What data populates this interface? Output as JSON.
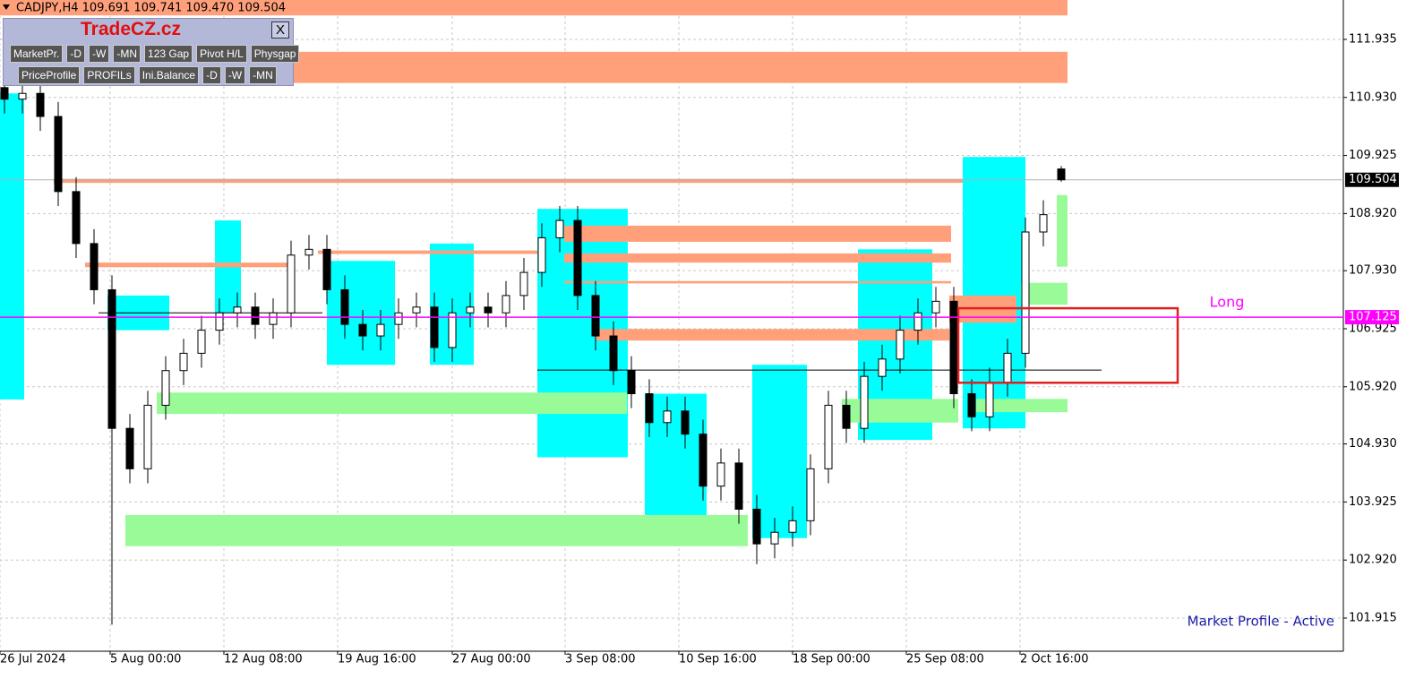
{
  "chart_data": {
    "type": "candlestick",
    "header": "CADJPY,H4  109.691 109.741 109.470 109.504",
    "x": [
      0,
      1,
      2,
      3,
      4,
      5,
      6,
      7,
      8,
      9,
      10,
      11,
      12,
      13,
      14,
      15,
      16,
      17,
      18,
      19,
      20,
      21,
      22,
      23,
      24,
      25,
      26,
      27,
      28,
      29,
      30,
      31,
      32,
      33,
      34,
      35,
      36,
      37,
      38,
      39,
      40,
      41,
      42,
      43,
      44,
      45,
      46,
      47,
      48,
      49,
      50,
      51,
      52,
      53,
      54,
      55,
      56,
      57,
      58,
      59
    ],
    "open": [
      111.1,
      110.9,
      111.0,
      110.6,
      109.3,
      108.4,
      107.6,
      105.2,
      104.5,
      105.6,
      106.2,
      106.5,
      106.9,
      107.2,
      107.3,
      107.0,
      107.2,
      108.2,
      108.3,
      107.6,
      107.0,
      106.8,
      107.0,
      107.2,
      107.3,
      106.6,
      107.2,
      107.3,
      107.2,
      107.5,
      107.9,
      108.5,
      108.8,
      107.5,
      106.8,
      106.2,
      105.8,
      105.3,
      105.5,
      105.1,
      104.2,
      104.6,
      103.8,
      103.2,
      103.4,
      103.6,
      104.5,
      105.6,
      105.2,
      106.1,
      106.4,
      106.9,
      107.2,
      107.4,
      105.8,
      105.4,
      106.0,
      106.5,
      108.6,
      109.691
    ],
    "high": [
      111.35,
      111.25,
      111.25,
      110.85,
      109.55,
      108.65,
      107.85,
      105.45,
      105.85,
      106.45,
      106.75,
      107.15,
      107.45,
      107.55,
      107.55,
      107.45,
      108.45,
      108.55,
      108.55,
      107.85,
      107.25,
      107.25,
      107.45,
      107.55,
      107.55,
      107.45,
      107.55,
      107.55,
      107.75,
      108.15,
      108.75,
      109.05,
      109.05,
      107.75,
      107.05,
      106.45,
      106.05,
      105.75,
      105.75,
      105.35,
      104.85,
      104.85,
      104.05,
      103.65,
      103.85,
      104.75,
      105.85,
      105.85,
      106.35,
      106.65,
      107.15,
      107.45,
      107.65,
      107.65,
      106.05,
      106.25,
      106.75,
      108.85,
      109.15,
      109.741
    ],
    "low": [
      110.65,
      110.65,
      110.35,
      109.05,
      108.15,
      107.35,
      101.8,
      104.25,
      104.25,
      105.35,
      105.95,
      106.25,
      106.65,
      106.95,
      106.75,
      106.75,
      106.95,
      107.95,
      107.35,
      106.75,
      106.55,
      106.55,
      106.75,
      106.95,
      106.35,
      106.35,
      106.95,
      106.95,
      106.95,
      107.25,
      107.65,
      108.25,
      107.25,
      106.55,
      105.95,
      105.55,
      105.05,
      105.05,
      104.85,
      103.95,
      103.95,
      103.55,
      102.85,
      102.95,
      103.15,
      103.35,
      104.25,
      104.95,
      104.95,
      105.85,
      106.15,
      106.65,
      106.95,
      105.55,
      105.15,
      105.15,
      105.75,
      106.25,
      108.35,
      109.47
    ],
    "close": [
      110.9,
      111.0,
      110.6,
      109.3,
      108.4,
      107.6,
      105.2,
      104.5,
      105.6,
      106.2,
      106.5,
      106.9,
      107.2,
      107.3,
      107.0,
      107.2,
      108.2,
      108.3,
      107.6,
      107.0,
      106.8,
      107.0,
      107.2,
      107.3,
      106.6,
      107.2,
      107.3,
      107.2,
      107.5,
      107.9,
      108.5,
      108.8,
      107.5,
      106.8,
      106.2,
      105.8,
      105.3,
      105.5,
      105.1,
      104.2,
      104.6,
      103.8,
      103.2,
      103.4,
      103.6,
      104.5,
      105.6,
      105.2,
      106.1,
      106.4,
      106.9,
      107.2,
      107.4,
      105.8,
      105.4,
      106.0,
      106.5,
      108.6,
      108.9,
      109.504
    ],
    "xlim": [
      -0.25,
      74.75
    ],
    "ylim": [
      101.341,
      112.617
    ],
    "yticks": [
      111.935,
      {
        "value": 110.93,
        "label": "110.930"
      },
      109.925,
      {
        "value": 108.92,
        "label": "108.920"
      },
      {
        "value": 107.93,
        "label": "107.930"
      },
      106.925,
      {
        "value": 105.92,
        "label": "105.920"
      },
      {
        "value": 104.93,
        "label": "104.930"
      },
      103.925,
      {
        "value": 102.92,
        "label": "102.920"
      },
      101.915
    ],
    "xticks": [
      {
        "value": -0.25,
        "label": "26 Jul 2024"
      },
      {
        "value": 5.9,
        "label": "5 Aug 00:00"
      },
      {
        "value": 12.25,
        "label": "12 Aug 08:00"
      },
      {
        "value": 18.6,
        "label": "19 Aug 16:00"
      },
      {
        "value": 25,
        "label": "27 Aug 00:00"
      },
      {
        "value": 31.3,
        "label": "3 Sep 08:00"
      },
      {
        "value": 37.65,
        "label": "10 Sep 16:00"
      },
      {
        "value": 44,
        "label": "18 Sep 00:00"
      },
      {
        "value": 50.35,
        "label": "25 Sep 08:00"
      },
      {
        "value": 56.7,
        "label": "2 Oct 16:00"
      }
    ],
    "grid": true,
    "bid": 109.504,
    "level": {
      "value": 107.125,
      "text": "Long",
      "color": "#ff00ff"
    },
    "profiles": [
      {
        "x0": -0.25,
        "x1": 1.1,
        "y0": 105.7,
        "y1": 111.0,
        "color": "#00ffff"
      },
      {
        "x0": 5.75,
        "x1": 9.2,
        "y0": 106.9,
        "y1": 107.5,
        "color": "#00ffff"
      },
      {
        "x0": 11.75,
        "x1": 13.2,
        "y0": 107.2,
        "y1": 108.8,
        "color": "#00ffff"
      },
      {
        "x0": 18,
        "x1": 21.8,
        "y0": 106.3,
        "y1": 108.1,
        "color": "#00ffff"
      },
      {
        "x0": 23.75,
        "x1": 26.2,
        "y0": 106.3,
        "y1": 108.4,
        "color": "#00ffff"
      },
      {
        "x0": 29.75,
        "x1": 34.8,
        "y0": 104.7,
        "y1": 109.0,
        "color": "#00ffff"
      },
      {
        "x0": 35.75,
        "x1": 39.2,
        "y0": 103.5,
        "y1": 105.8,
        "color": "#00ffff"
      },
      {
        "x0": 41.75,
        "x1": 44.8,
        "y0": 103.3,
        "y1": 106.3,
        "color": "#00ffff"
      },
      {
        "x0": 47.65,
        "x1": 51.8,
        "y0": 105.0,
        "y1": 108.3,
        "color": "#00ffff"
      },
      {
        "x0": 53.5,
        "x1": 57,
        "y0": 105.2,
        "y1": 109.9,
        "color": "#00ffff"
      }
    ],
    "zones": [
      {
        "x0": -0.25,
        "x1": 59.35,
        "y0": 112.35,
        "y1": 112.617,
        "color": "#ffa07a"
      },
      {
        "x0": 2.75,
        "x1": 59.35,
        "y0": 111.18,
        "y1": 111.72,
        "color": "#ffa07a"
      },
      {
        "x0": 2.75,
        "x1": 53.5,
        "y0": 109.45,
        "y1": 109.52,
        "color": "#ffa07a"
      },
      {
        "x0": 31.25,
        "x1": 52.85,
        "y0": 108.43,
        "y1": 108.71,
        "color": "#ffa07a"
      },
      {
        "x0": 31.25,
        "x1": 52.85,
        "y0": 108.07,
        "y1": 108.23,
        "color": "#ffa07a"
      },
      {
        "x0": 31.25,
        "x1": 52.85,
        "y0": 107.71,
        "y1": 107.75,
        "color": "#ffa07a"
      },
      {
        "x0": 33,
        "x1": 52.75,
        "y0": 106.72,
        "y1": 106.92,
        "color": "#ffa07a"
      },
      {
        "x0": 4.5,
        "x1": 16,
        "y0": 107.99,
        "y1": 108.07,
        "color": "#ffa07a"
      },
      {
        "x0": 17.5,
        "x1": 29.75,
        "y0": 108.22,
        "y1": 108.28,
        "color": "#ffa07a"
      },
      {
        "x0": 8.5,
        "x1": 34.75,
        "y0": 105.45,
        "y1": 105.82,
        "color": "#98fb98"
      },
      {
        "x0": 6.75,
        "x1": 41.5,
        "y0": 103.16,
        "y1": 103.7,
        "color": "#98fb98"
      },
      {
        "x0": 46.75,
        "x1": 53.25,
        "y0": 105.3,
        "y1": 105.71,
        "color": "#98fb98"
      },
      {
        "x0": 54.25,
        "x1": 59.35,
        "y0": 105.48,
        "y1": 105.71,
        "color": "#98fb98"
      },
      {
        "x0": 56.75,
        "x1": 59.35,
        "y0": 107.34,
        "y1": 107.72,
        "color": "#98fb98"
      },
      {
        "x0": 52.75,
        "x1": 56.5,
        "y0": 107.03,
        "y1": 107.5,
        "color": "#ffa07a"
      },
      {
        "x0": 58.75,
        "x1": 59.35,
        "y0": 108.0,
        "y1": 109.24,
        "color": "#98fb98"
      }
    ],
    "lines": [
      {
        "x0": 5.25,
        "x1": 17.75,
        "y": 107.2
      },
      {
        "x0": 29.75,
        "x1": 61.25,
        "y": 106.21
      }
    ],
    "box": {
      "x0": 53.25,
      "x1": 65.5,
      "y0": 105.99,
      "y1": 107.28,
      "color": "#e02020"
    },
    "status": "Market Profile - Active",
    "toolbar": {
      "title": "TradeCZ.cz",
      "close": "X",
      "row1": [
        "MarketPr.",
        "-D",
        "-W",
        "-MN",
        "123 Gap",
        "Pivot H/L",
        "Physgap"
      ],
      "row2": [
        "PriceProfile",
        "PROFILs",
        "Ini.Balance",
        "-D",
        "-W",
        "-MN"
      ]
    }
  }
}
